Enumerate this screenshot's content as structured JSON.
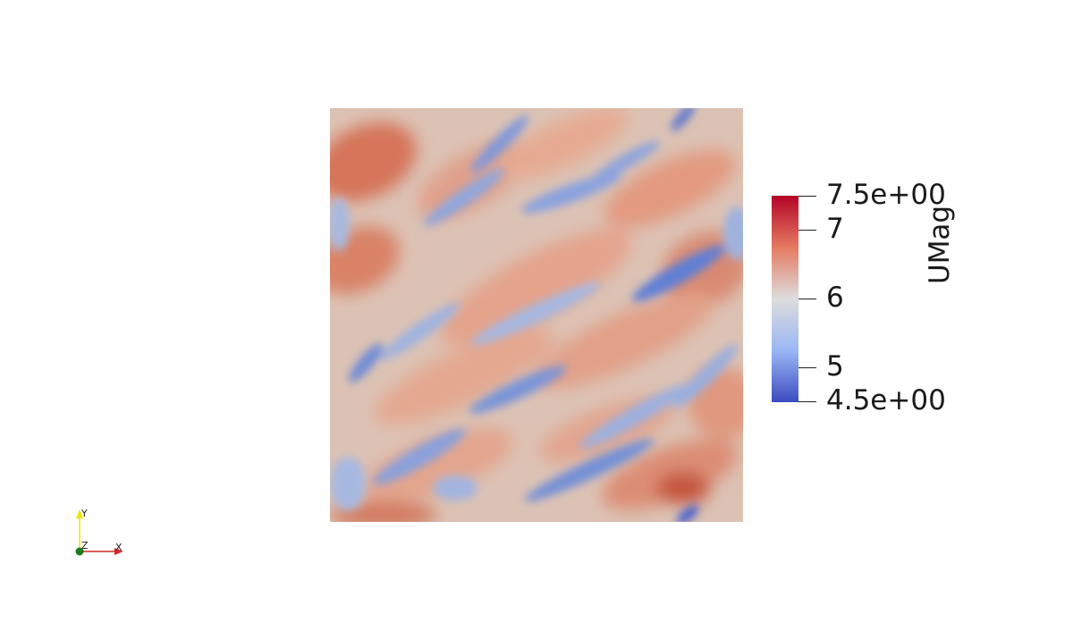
{
  "colorbar": {
    "title": "UMag",
    "range": [
      4.5,
      7.5
    ],
    "ticks": [
      {
        "value": 7.5,
        "label": "7.5e+00"
      },
      {
        "value": 7,
        "label": "7"
      },
      {
        "value": 6,
        "label": "6"
      },
      {
        "value": 5,
        "label": "5"
      },
      {
        "value": 4.5,
        "label": "4.5e+00"
      }
    ],
    "colormap": "cool-to-warm",
    "colors": {
      "low": "#3b4cc0",
      "mid": "#dddddd",
      "high": "#b40426"
    }
  },
  "orientation_axes": {
    "x_label": "X",
    "y_label": "Y",
    "z_label": "Z",
    "colors": {
      "x": "#d62728",
      "y": "#e8e800",
      "z": "#1f7a1f"
    }
  }
}
